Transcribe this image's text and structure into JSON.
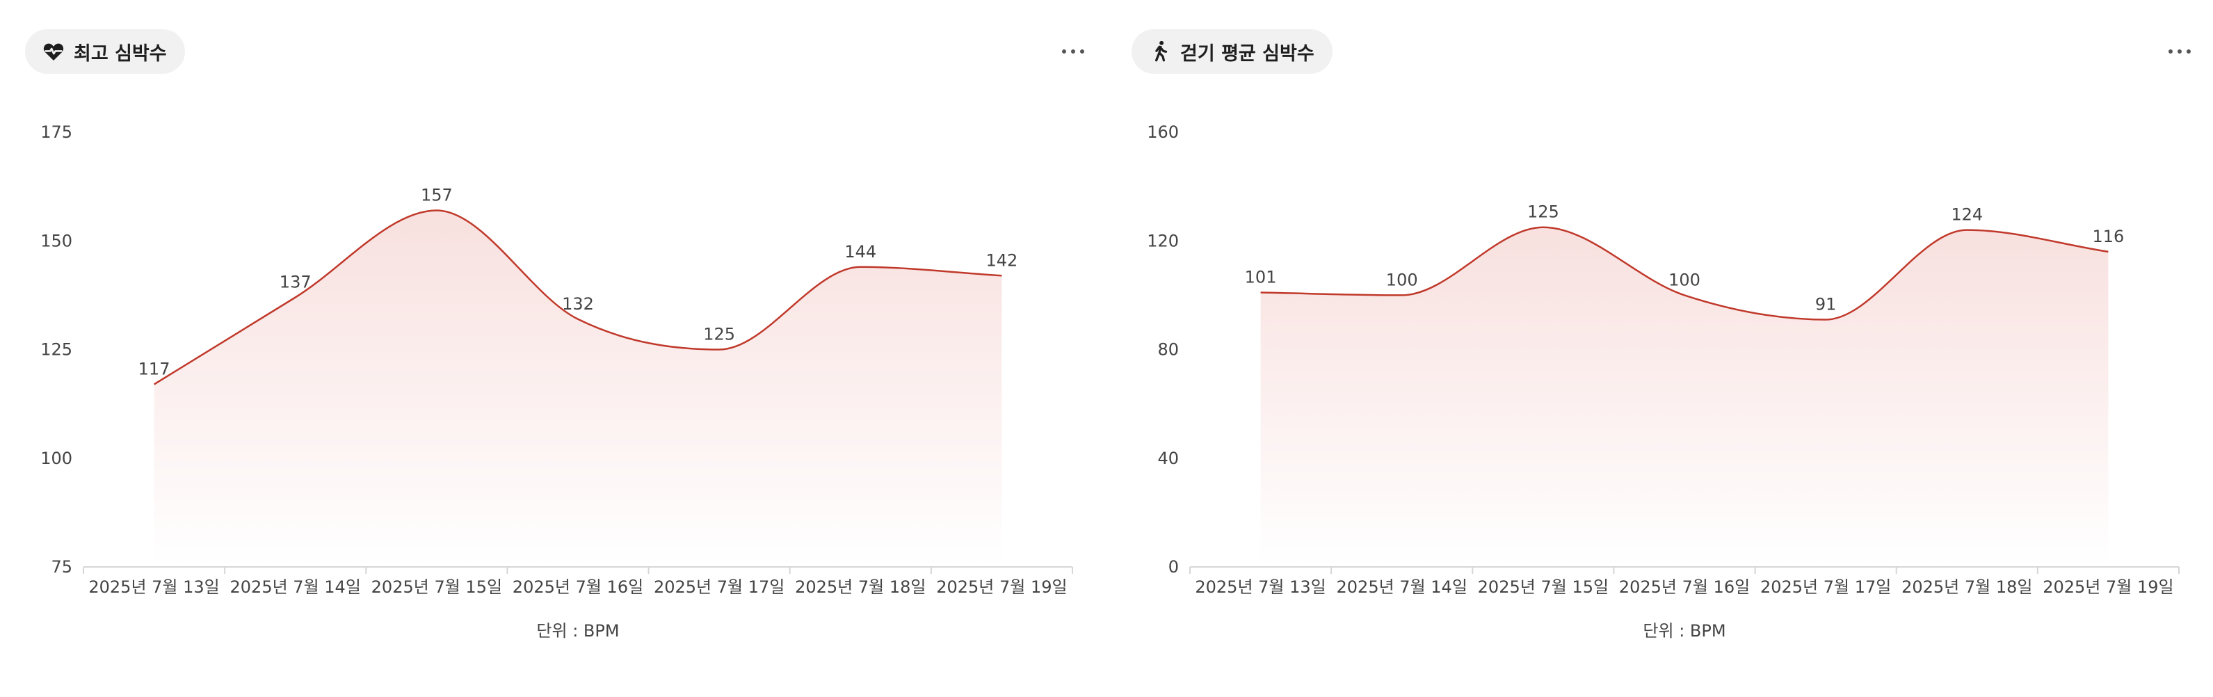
{
  "colors": {
    "line": "#c0392b",
    "fill": "#e8a09a",
    "axis": "#d6d6d6",
    "text": "#444444",
    "chip_bg": "#f1f1f1"
  },
  "panels": [
    {
      "title": "최고 심박수",
      "icon": "heart-pulse-icon",
      "unit_label": "단위 : BPM",
      "more_icon": "more-horizontal-icon",
      "chart_data": {
        "type": "area",
        "categories": [
          "2025년 7월 13일",
          "2025년 7월 14일",
          "2025년 7월 15일",
          "2025년 7월 16일",
          "2025년 7월 17일",
          "2025년 7월 18일",
          "2025년 7월 19일"
        ],
        "values": [
          117,
          137,
          157,
          132,
          125,
          144,
          142
        ],
        "data_labels": [
          "117",
          "137",
          "157",
          "132",
          "125",
          "144",
          "142"
        ],
        "yticks": [
          75,
          100,
          125,
          150,
          175
        ],
        "ytick_labels": [
          "75",
          "100",
          "125",
          "150",
          "175"
        ],
        "ylim": [
          75,
          175
        ],
        "grid": false,
        "legend": "none"
      }
    },
    {
      "title": "걷기 평균 심박수",
      "icon": "walking-person-icon",
      "unit_label": "단위 : BPM",
      "more_icon": "more-horizontal-icon",
      "chart_data": {
        "type": "area",
        "categories": [
          "2025년 7월 13일",
          "2025년 7월 14일",
          "2025년 7월 15일",
          "2025년 7월 16일",
          "2025년 7월 17일",
          "2025년 7월 18일",
          "2025년 7월 19일"
        ],
        "values": [
          101,
          100,
          125,
          100,
          91,
          124,
          116
        ],
        "data_labels": [
          "101",
          "100",
          "125",
          "100",
          "91",
          "124",
          "116"
        ],
        "yticks": [
          0,
          40,
          80,
          120,
          160
        ],
        "ytick_labels": [
          "0",
          "40",
          "80",
          "120",
          "160"
        ],
        "ylim": [
          0,
          160
        ],
        "grid": false,
        "legend": "none"
      }
    }
  ]
}
